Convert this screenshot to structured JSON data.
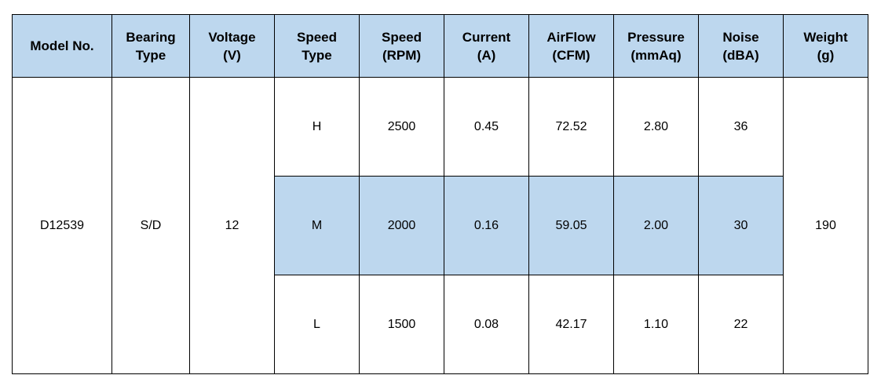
{
  "headers": [
    [
      "Model No."
    ],
    [
      "Bearing",
      "Type"
    ],
    [
      "Voltage",
      "(V)"
    ],
    [
      "Speed",
      "Type"
    ],
    [
      "Speed",
      "(RPM)"
    ],
    [
      "Current",
      "(A)"
    ],
    [
      "AirFlow",
      "(CFM)"
    ],
    [
      "Pressure",
      "(mmAq)"
    ],
    [
      "Noise",
      "(dBA)"
    ],
    [
      "Weight",
      "(g)"
    ]
  ],
  "model_no": "D12539",
  "bearing_type": "S/D",
  "voltage": "12",
  "weight": "190",
  "rows": [
    {
      "speed_type": "H",
      "rpm": "2500",
      "current": "0.45",
      "airflow": "72.52",
      "pressure": "2.80",
      "noise": "36"
    },
    {
      "speed_type": "M",
      "rpm": "2000",
      "current": "0.16",
      "airflow": "59.05",
      "pressure": "2.00",
      "noise": "30",
      "highlighted": true
    },
    {
      "speed_type": "L",
      "rpm": "1500",
      "current": "0.08",
      "airflow": "42.17",
      "pressure": "1.10",
      "noise": "22"
    }
  ],
  "colors": {
    "header_bg": "#bdd7ee",
    "highlight_bg": "#bdd7ee",
    "border": "#000000"
  }
}
